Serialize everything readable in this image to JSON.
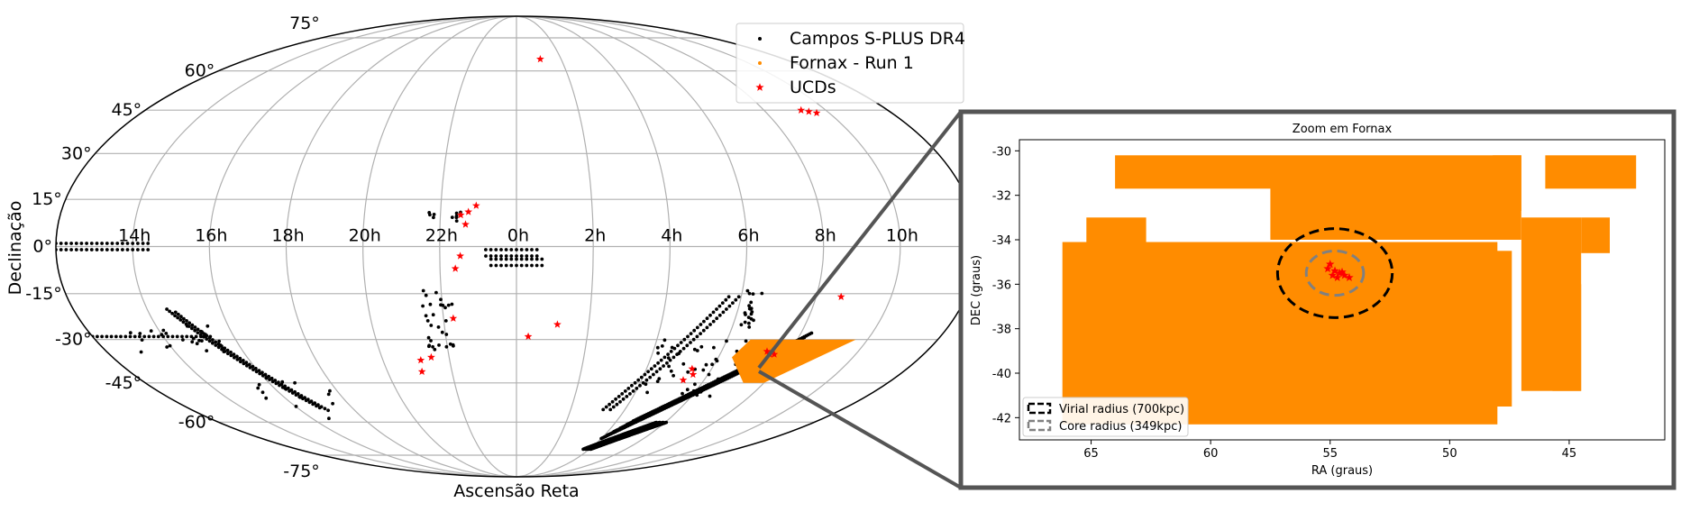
{
  "chart_data": [
    {
      "type": "scatter",
      "projection": "mollweide",
      "xlabel": "Ascensão Reta",
      "ylabel": "Declinação",
      "grid": true,
      "legend_position": "top-right",
      "ra_tick_labels": [
        "14h",
        "16h",
        "18h",
        "20h",
        "22h",
        "0h",
        "2h",
        "4h",
        "6h",
        "8h",
        "10h"
      ],
      "dec_tick_labels": [
        "75°",
        "60°",
        "45°",
        "30°",
        "15°",
        "0°",
        "-15°",
        "-30°",
        "-45°",
        "-60°",
        "-75°"
      ],
      "series": [
        {
          "name": "Campos S-PLUS DR4",
          "color": "#000000",
          "marker": "dot"
        },
        {
          "name": "Fornax - Run 1",
          "color": "#ff8c00",
          "marker": "dot"
        },
        {
          "name": "UCDs",
          "color": "#ff0000",
          "marker": "star"
        }
      ],
      "ucds_radec_deg": [
        [
          16,
          65
        ],
        [
          138,
          45
        ],
        [
          141,
          44.5
        ],
        [
          144,
          44
        ],
        [
          -16,
          13
        ],
        [
          -22,
          10
        ],
        [
          -19,
          11
        ],
        [
          -20,
          7
        ],
        [
          -24,
          -7
        ],
        [
          -22,
          -3
        ],
        [
          -26,
          -23
        ],
        [
          -43,
          -37
        ],
        [
          -38,
          -36
        ],
        [
          -44,
          -41
        ],
        [
          17,
          -25
        ],
        [
          5,
          -29
        ],
        [
          81,
          -40
        ],
        [
          83,
          -42
        ],
        [
          80,
          -44
        ],
        [
          112,
          -35
        ],
        [
          114,
          -35
        ],
        [
          130,
          -16
        ],
        [
          110,
          -34
        ]
      ],
      "splus_strips_radec_deg": [
        {
          "dec": [
            0,
            0
          ],
          "ra": [
            -180,
            -140
          ]
        },
        {
          "dec": [
            0,
            0
          ],
          "ra": [
            -10,
            10
          ]
        },
        {
          "dec": [
            -3,
            -3
          ],
          "ra": [
            -10,
            10
          ]
        },
        {
          "dec": [
            -29,
            -29
          ],
          "ra": [
            -180,
            -125
          ]
        },
        {
          "dec": [
            -30,
            -30
          ],
          "ra": [
            110,
            180
          ]
        },
        {
          "dec": [
            -31,
            -31
          ],
          "ra": [
            110,
            180
          ]
        },
        {
          "dec": [
            -32,
            -32
          ],
          "ra": [
            110,
            180
          ]
        }
      ]
    },
    {
      "type": "scatter",
      "title": "Zoom em Fornax",
      "xlabel": "RA (graus)",
      "ylabel": "DEC (graus)",
      "xlim": [
        68,
        41
      ],
      "ylim": [
        -43,
        -29.5
      ],
      "xticks": [
        65,
        60,
        55,
        50,
        45
      ],
      "yticks": [
        -30,
        -32,
        -34,
        -36,
        -38,
        -40,
        -42
      ],
      "center": [
        54.8,
        -35.5
      ],
      "legend": [
        "Virial radius (700kpc)",
        "Core radius (349kpc)"
      ],
      "legend_position": "bottom-left",
      "fornax_region_rects_deg": [
        [
          64,
          57.5,
          -30.2,
          -31.7
        ],
        [
          57.5,
          47,
          -30.2,
          -34
        ],
        [
          48.2,
          47,
          -30.2,
          -32.7
        ],
        [
          46,
          42.2,
          -30.2,
          -31.7
        ],
        [
          65.2,
          62.7,
          -33,
          -34.5
        ],
        [
          66.2,
          48,
          -34.1,
          -42.3
        ],
        [
          47,
          44.5,
          -33,
          -40.8
        ],
        [
          44.5,
          43.3,
          -33,
          -34.6
        ],
        [
          63.5,
          62,
          -34.5,
          -40.8
        ],
        [
          49,
          47.4,
          -34.5,
          -41.5
        ],
        [
          45.7,
          44.5,
          -36,
          -40.8
        ]
      ],
      "virial_radius": {
        "rx_deg": 2.4,
        "ry_deg": 2.0
      },
      "core_radius": {
        "rx_deg": 1.2,
        "ry_deg": 1.0
      },
      "ucds_radec_deg": [
        [
          55.0,
          -35.1
        ],
        [
          54.8,
          -35.4
        ],
        [
          54.6,
          -35.5
        ],
        [
          54.9,
          -35.6
        ],
        [
          54.4,
          -35.6
        ],
        [
          55.1,
          -35.3
        ],
        [
          54.7,
          -35.7
        ],
        [
          54.2,
          -35.7
        ],
        [
          54.5,
          -35.45
        ]
      ]
    }
  ]
}
